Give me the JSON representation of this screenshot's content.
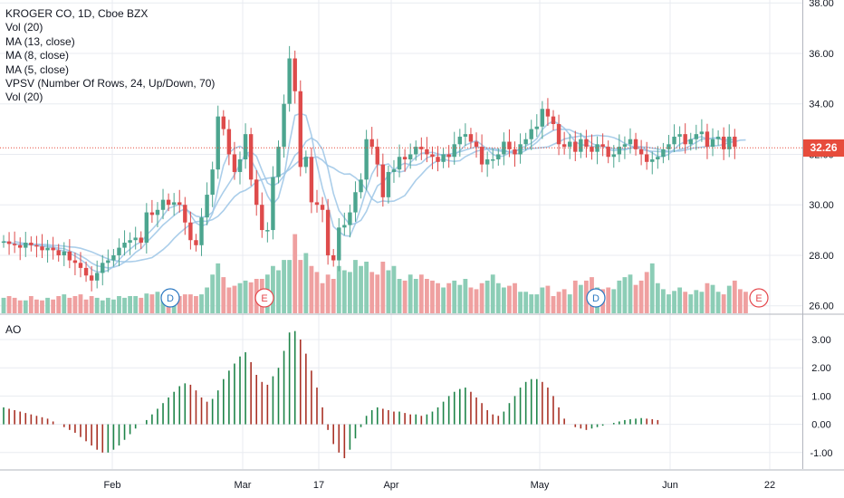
{
  "legend": {
    "symbol_line": "KROGER CO, 1D, Cboe BZX",
    "studies": [
      "Vol (20)",
      "MA (13, close)",
      "MA (8, close)",
      "MA (5, close)",
      "VPSV (Number Of Rows, 24, Up/Down, 70)",
      "Vol (20)"
    ]
  },
  "ao_label": "AO",
  "last_price": "32.26",
  "colors": {
    "up": "#4CA58F",
    "down": "#DE4B4B",
    "ma": "#9CC6E6",
    "vol_up": "#8CCDB6",
    "vol_down": "#EFA0A0",
    "ao_up": "#1E8449",
    "ao_down": "#A93226",
    "price_line": "#E74C3C",
    "grid": "#E8EBF0",
    "text": "#131722"
  },
  "chart_data": [
    {
      "type": "candlestick",
      "title": "KROGER CO, 1D, Cboe BZX",
      "y_ticks": [
        "38.00",
        "36.00",
        "34.00",
        "32.00",
        "30.00",
        "28.00",
        "26.00"
      ],
      "ylim": [
        26,
        38
      ],
      "x_ticks": [
        "Feb",
        "Mar",
        "17",
        "Apr",
        "May",
        "Jun",
        "22"
      ],
      "last_price": 32.26,
      "close": [
        28.55,
        28.45,
        28.4,
        28.3,
        28.5,
        28.4,
        28.35,
        28.2,
        28.3,
        28.2,
        28.0,
        28.15,
        27.8,
        27.7,
        27.5,
        27.2,
        27.0,
        27.3,
        27.7,
        27.8,
        28.0,
        28.3,
        28.5,
        28.6,
        28.7,
        28.5,
        29.7,
        29.6,
        29.8,
        30.2,
        30.0,
        30.1,
        30.0,
        29.3,
        28.6,
        28.4,
        29.5,
        30.4,
        31.4,
        33.5,
        33.0,
        32.0,
        31.3,
        31.8,
        32.8,
        31.0,
        30.0,
        29.0,
        29.0,
        31.1,
        32.3,
        34.0,
        35.8,
        34.5,
        31.5,
        31.9,
        30.1,
        30.0,
        29.8,
        28.0,
        27.8,
        29.1,
        29.2,
        29.7,
        30.5,
        31.0,
        32.6,
        32.3,
        31.6,
        30.3,
        31.3,
        31.4,
        31.9,
        31.8,
        32.0,
        32.3,
        32.2,
        32.0,
        31.9,
        31.7,
        32.0,
        31.9,
        32.4,
        32.7,
        32.8,
        32.5,
        32.3,
        31.6,
        31.8,
        31.8,
        32.0,
        32.5,
        32.2,
        32.0,
        32.4,
        32.6,
        33.0,
        33.1,
        33.8,
        33.5,
        33.2,
        32.4,
        32.3,
        32.5,
        32.1,
        32.6,
        32.3,
        32.1,
        32.4,
        32.3,
        31.9,
        32.0,
        32.3,
        32.4,
        32.6,
        32.2,
        32.0,
        31.7,
        31.8,
        31.9,
        32.2,
        32.4,
        32.7,
        32.8,
        32.4,
        32.6,
        32.8,
        32.9,
        32.3,
        32.6,
        32.7,
        32.2,
        32.7,
        32.3
      ],
      "volume_heights": [
        0.18,
        0.2,
        0.18,
        0.15,
        0.15,
        0.2,
        0.16,
        0.15,
        0.18,
        0.16,
        0.2,
        0.22,
        0.18,
        0.2,
        0.22,
        0.16,
        0.2,
        0.18,
        0.15,
        0.18,
        0.16,
        0.2,
        0.18,
        0.2,
        0.2,
        0.18,
        0.23,
        0.22,
        0.25,
        0.22,
        0.28,
        0.25,
        0.2,
        0.22,
        0.22,
        0.2,
        0.22,
        0.3,
        0.45,
        0.58,
        0.42,
        0.3,
        0.32,
        0.35,
        0.38,
        0.36,
        0.4,
        0.4,
        0.45,
        0.55,
        0.5,
        0.62,
        0.62,
        0.92,
        0.62,
        0.7,
        0.55,
        0.48,
        0.35,
        0.45,
        0.4,
        0.55,
        0.5,
        0.48,
        0.62,
        0.55,
        0.6,
        0.48,
        0.45,
        0.6,
        0.5,
        0.55,
        0.4,
        0.38,
        0.45,
        0.4,
        0.45,
        0.4,
        0.38,
        0.35,
        0.3,
        0.35,
        0.38,
        0.33,
        0.4,
        0.3,
        0.28,
        0.35,
        0.38,
        0.45,
        0.35,
        0.3,
        0.32,
        0.35,
        0.25,
        0.25,
        0.22,
        0.22,
        0.3,
        0.32,
        0.2,
        0.25,
        0.28,
        0.22,
        0.38,
        0.33,
        0.38,
        0.42,
        0.3,
        0.28,
        0.3,
        0.28,
        0.38,
        0.42,
        0.45,
        0.33,
        0.38,
        0.48,
        0.58,
        0.35,
        0.28,
        0.22,
        0.26,
        0.3,
        0.25,
        0.22,
        0.27,
        0.25,
        0.35,
        0.33,
        0.25,
        0.22,
        0.32,
        0.38,
        0.28,
        0.25
      ]
    },
    {
      "type": "bar",
      "title": "AO",
      "y_ticks": [
        "3.00",
        "2.00",
        "1.00",
        "0.00",
        "-1.00"
      ],
      "ylim": [
        -1.5,
        3.5
      ],
      "values": [
        0.6,
        0.55,
        0.5,
        0.45,
        0.4,
        0.35,
        0.3,
        0.25,
        0.2,
        0.1,
        0.0,
        -0.1,
        -0.2,
        -0.3,
        -0.45,
        -0.6,
        -0.75,
        -0.9,
        -1.0,
        -1.0,
        -0.9,
        -0.75,
        -0.55,
        -0.35,
        -0.15,
        0.0,
        0.15,
        0.35,
        0.55,
        0.75,
        0.95,
        1.15,
        1.35,
        1.45,
        1.4,
        1.2,
        0.95,
        0.8,
        0.9,
        1.2,
        1.6,
        1.9,
        2.15,
        2.4,
        2.55,
        2.2,
        1.75,
        1.5,
        1.4,
        1.7,
        2.0,
        2.6,
        3.25,
        3.3,
        3.0,
        2.5,
        1.9,
        1.3,
        0.6,
        -0.2,
        -0.7,
        -1.0,
        -1.2,
        -0.9,
        -0.5,
        -0.1,
        0.3,
        0.5,
        0.6,
        0.55,
        0.5,
        0.45,
        0.45,
        0.4,
        0.35,
        0.35,
        0.3,
        0.35,
        0.45,
        0.6,
        0.8,
        1.0,
        1.15,
        1.25,
        1.3,
        1.15,
        0.95,
        0.75,
        0.5,
        0.35,
        0.3,
        0.45,
        0.75,
        1.0,
        1.3,
        1.5,
        1.6,
        1.6,
        1.5,
        1.3,
        1.0,
        0.6,
        0.2,
        0.0,
        -0.1,
        -0.15,
        -0.2,
        -0.15,
        -0.1,
        -0.05,
        0.0,
        0.05,
        0.1,
        0.15,
        0.18,
        0.2,
        0.22,
        0.2,
        0.18,
        0.15
      ]
    }
  ]
}
